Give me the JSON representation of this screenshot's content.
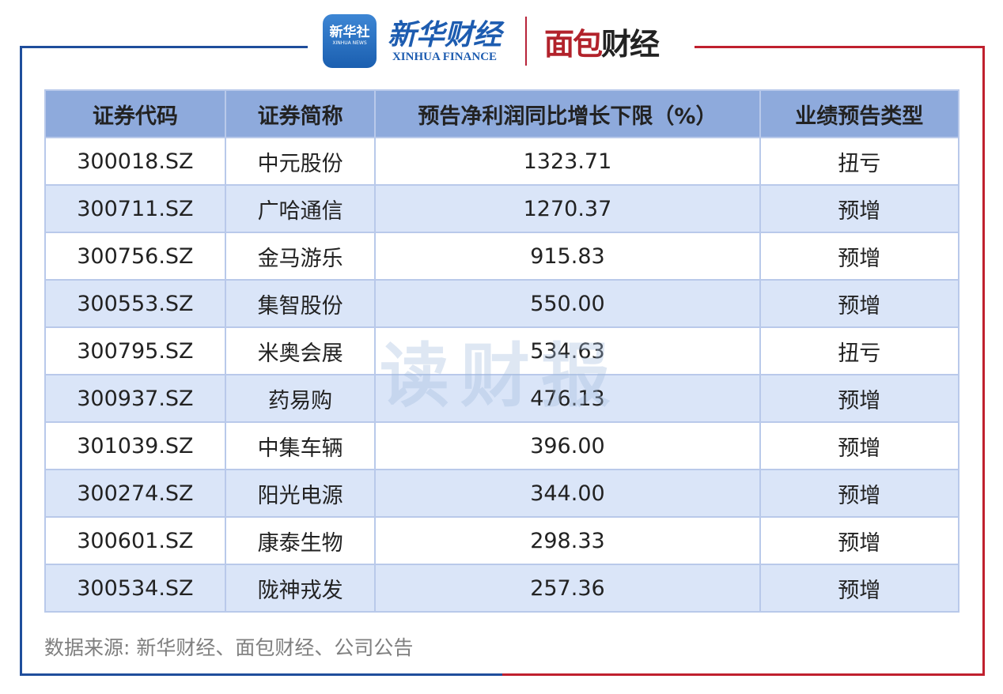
{
  "logos": {
    "xinhua_app": "新华社",
    "xinhua_app_sub": "XINHUA NEWS",
    "xinhua_finance": "新华财经",
    "xinhua_finance_en": "XINHUA FINANCE",
    "mianbao_a": "面包",
    "mianbao_b": "财经"
  },
  "colors": {
    "frame_left": "#1f4e9c",
    "frame_right": "#c0202e",
    "header_bg": "#8eaadc",
    "alt_row_bg": "#dae5f8"
  },
  "table": {
    "headers": [
      "证券代码",
      "证券简称",
      "预告净利润同比增长下限（%）",
      "业绩预告类型"
    ],
    "rows": [
      [
        "300018.SZ",
        "中元股份",
        "1323.71",
        "扭亏"
      ],
      [
        "300711.SZ",
        "广哈通信",
        "1270.37",
        "预增"
      ],
      [
        "300756.SZ",
        "金马游乐",
        "915.83",
        "预增"
      ],
      [
        "300553.SZ",
        "集智股份",
        "550.00",
        "预增"
      ],
      [
        "300795.SZ",
        "米奥会展",
        "534.63",
        "扭亏"
      ],
      [
        "300937.SZ",
        "药易购",
        "476.13",
        "预增"
      ],
      [
        "301039.SZ",
        "中集车辆",
        "396.00",
        "预增"
      ],
      [
        "300274.SZ",
        "阳光电源",
        "344.00",
        "预增"
      ],
      [
        "300601.SZ",
        "康泰生物",
        "298.33",
        "预增"
      ],
      [
        "300534.SZ",
        "陇神戎发",
        "257.36",
        "预增"
      ]
    ]
  },
  "watermark": "读财报",
  "source": "数据来源: 新华财经、面包财经、公司公告"
}
